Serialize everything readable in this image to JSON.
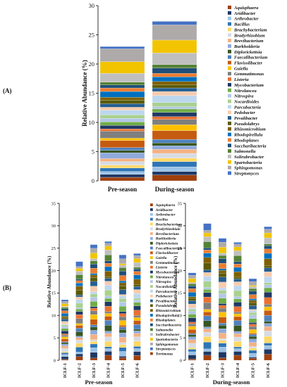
{
  "panel_labels": {
    "a": "(A)",
    "b": "(B)"
  },
  "colors": [
    "#A0400D",
    "#1F3864",
    "#9DC3E6",
    "#2E75B6",
    "#FFD966",
    "#D6DCE4",
    "#F4B183",
    "#8FAADC",
    "#375623",
    "#4F81BD",
    "#C55A11",
    "#FFC000",
    "#7F7F7F",
    "#E97132",
    "#203864",
    "#70AD47",
    "#B4C7E7",
    "#A9D18E",
    "#BDD7EE",
    "#F8CBAD",
    "#255E91",
    "#5A5A0A",
    "#7F6000",
    "#0070C0",
    "#ED7D31",
    "#1F4E79",
    "#548235",
    "#BFBFBF",
    "#F2C400",
    "#AEAAAA",
    "#4472C4"
  ],
  "chart_data": [
    {
      "type": "bar",
      "stacked": true,
      "categories": [
        "Pre-season",
        "During-season"
      ],
      "ylabel": "Relative Abundance (%)",
      "ylim": [
        0,
        30
      ],
      "yticks": [
        0,
        5,
        10,
        15,
        20,
        25,
        30
      ],
      "legend_position": "right",
      "series": [
        {
          "name": "Aquisphaera",
          "values": [
            0.6,
            1.0
          ]
        },
        {
          "name": "Aridibacter",
          "values": [
            0.5,
            0.6
          ]
        },
        {
          "name": "Arthrobacter",
          "values": [
            0.5,
            0.8
          ]
        },
        {
          "name": "Bacillus",
          "values": [
            0.6,
            0.9
          ]
        },
        {
          "name": "Brachybacterium",
          "values": [
            0.5,
            0.6
          ]
        },
        {
          "name": "Bradyrhizobium",
          "values": [
            0.6,
            0.8
          ]
        },
        {
          "name": "Brevibacterium",
          "values": [
            0.5,
            0.7
          ]
        },
        {
          "name": "Burkholderia",
          "values": [
            1.0,
            0.6
          ]
        },
        {
          "name": "Diplorickettsia",
          "values": [
            0.4,
            0.5
          ]
        },
        {
          "name": "Faecalibacterium",
          "values": [
            0.5,
            0.6
          ]
        },
        {
          "name": "Flavisolibacter",
          "values": [
            1.2,
            1.5
          ]
        },
        {
          "name": "Gaiella",
          "values": [
            0.4,
            1.0
          ]
        },
        {
          "name": "Gemmatimonas",
          "values": [
            1.2,
            0.9
          ]
        },
        {
          "name": "Listeria",
          "values": [
            0.4,
            0.5
          ]
        },
        {
          "name": "Mycobacterium",
          "values": [
            0.6,
            0.7
          ]
        },
        {
          "name": "Nitrolancea",
          "values": [
            0.6,
            0.6
          ]
        },
        {
          "name": "Nitrospira",
          "values": [
            0.6,
            0.4
          ]
        },
        {
          "name": "Nocardioides",
          "values": [
            0.6,
            0.7
          ]
        },
        {
          "name": "Parcubacteria",
          "values": [
            0.8,
            1.2
          ]
        },
        {
          "name": "Pedobacter",
          "values": [
            0.5,
            0.7
          ]
        },
        {
          "name": "Pevalibacter",
          "values": [
            0.6,
            0.6
          ]
        },
        {
          "name": "Pseudolabrys",
          "values": [
            0.6,
            0.5
          ]
        },
        {
          "name": "Rhizomicrobium",
          "values": [
            0.5,
            0.6
          ]
        },
        {
          "name": "Rhodopirellula",
          "values": [
            1.0,
            0.8
          ]
        },
        {
          "name": "Rhodoplanes",
          "values": [
            0.6,
            0.6
          ]
        },
        {
          "name": "Saccharibacteria",
          "values": [
            0.5,
            0.9
          ]
        },
        {
          "name": "Salmonella",
          "values": [
            0.5,
            0.6
          ]
        },
        {
          "name": "Solirubrobacter",
          "values": [
            1.5,
            2.0
          ]
        },
        {
          "name": "Spartobacteria",
          "values": [
            2.0,
            2.2
          ]
        },
        {
          "name": "Sphingomonas",
          "values": [
            2.2,
            2.6
          ]
        },
        {
          "name": "Streptomyces",
          "values": [
            0.4,
            0.6
          ]
        }
      ]
    },
    {
      "type": "bar",
      "stacked": true,
      "xlabel": "Pre-season",
      "categories": [
        "ICLF-1",
        "ICLF-2",
        "ICLF-3",
        "ICLF-4",
        "ICLF-5",
        "ICLF-6"
      ],
      "ylabel": "Relative Abundance (%)",
      "ylim": [
        0,
        35
      ],
      "yticks": [
        0,
        5,
        10,
        15,
        20,
        25,
        30,
        35
      ],
      "totals": [
        13.5,
        22,
        25.8,
        26.5,
        23.5,
        23.8
      ],
      "legend": [
        "Aquisphaera",
        "Aridibacter",
        "Arthrobacter",
        "Bacillus",
        "Brachybacterium",
        "Bradyrhizobium",
        "Brevibacterium",
        "Burkholderia",
        "Diplorickettsia",
        "Faecalibacterium",
        "Flavisolibacter",
        "Gaiella",
        "Gemmatimonas",
        "Listeria",
        "Mycobacterium",
        "Nitrolancea",
        "Nitrospira",
        "Nocardioides",
        "Parcubacteria",
        "Pedobacter",
        "Pevalibacter",
        "Pseudolabrys",
        "Rhizomicrobium",
        "Rhodopirellula",
        "Rhodoplanes",
        "Saccharibacteria",
        "Salmonella",
        "Solirubrobacter",
        "Spartobacteria",
        "Sphingomonas",
        "Streptomyces",
        "Terrimonas"
      ],
      "legend_position": "right"
    },
    {
      "type": "bar",
      "stacked": true,
      "xlabel": "During-season",
      "categories": [
        "ICLF-1",
        "ICLF-2",
        "ICLF-3",
        "ICLF-4",
        "ICLF-5",
        "ICLF-6"
      ],
      "ylabel": "Relative Abundance (%)",
      "ylim": [
        0,
        35
      ],
      "yticks": [
        0,
        5,
        10,
        15,
        20,
        25,
        30,
        35
      ],
      "totals": [
        19.5,
        30.5,
        27.2,
        26.3,
        18.2,
        29.8
      ]
    }
  ]
}
